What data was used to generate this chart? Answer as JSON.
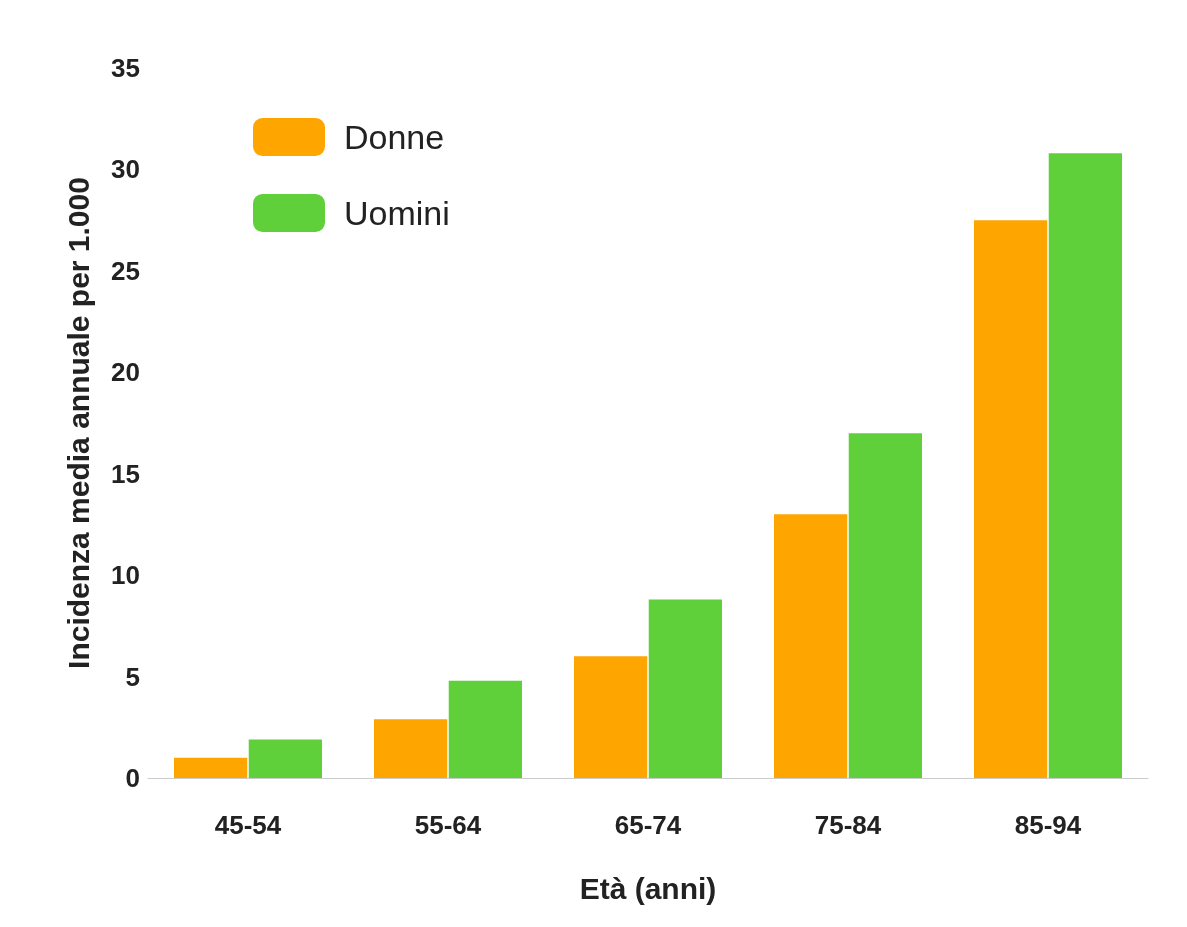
{
  "chart_data": {
    "type": "bar",
    "xlabel": "Età (anni)",
    "ylabel": "Incidenza media annuale per 1.000",
    "categories": [
      "45-54",
      "55-64",
      "65-74",
      "75-84",
      "85-94"
    ],
    "series": [
      {
        "name": "Donne",
        "color": "#ffa500",
        "values": [
          1,
          2.9,
          6,
          13,
          27.5
        ]
      },
      {
        "name": "Uomini",
        "color": "#5fd03a",
        "values": [
          1.9,
          4.8,
          8.8,
          17,
          30.8
        ]
      }
    ],
    "ylim": [
      0,
      35
    ],
    "yticks": [
      0,
      5,
      10,
      15,
      20,
      25,
      30,
      35
    ],
    "grid": false,
    "legend": "top left"
  }
}
